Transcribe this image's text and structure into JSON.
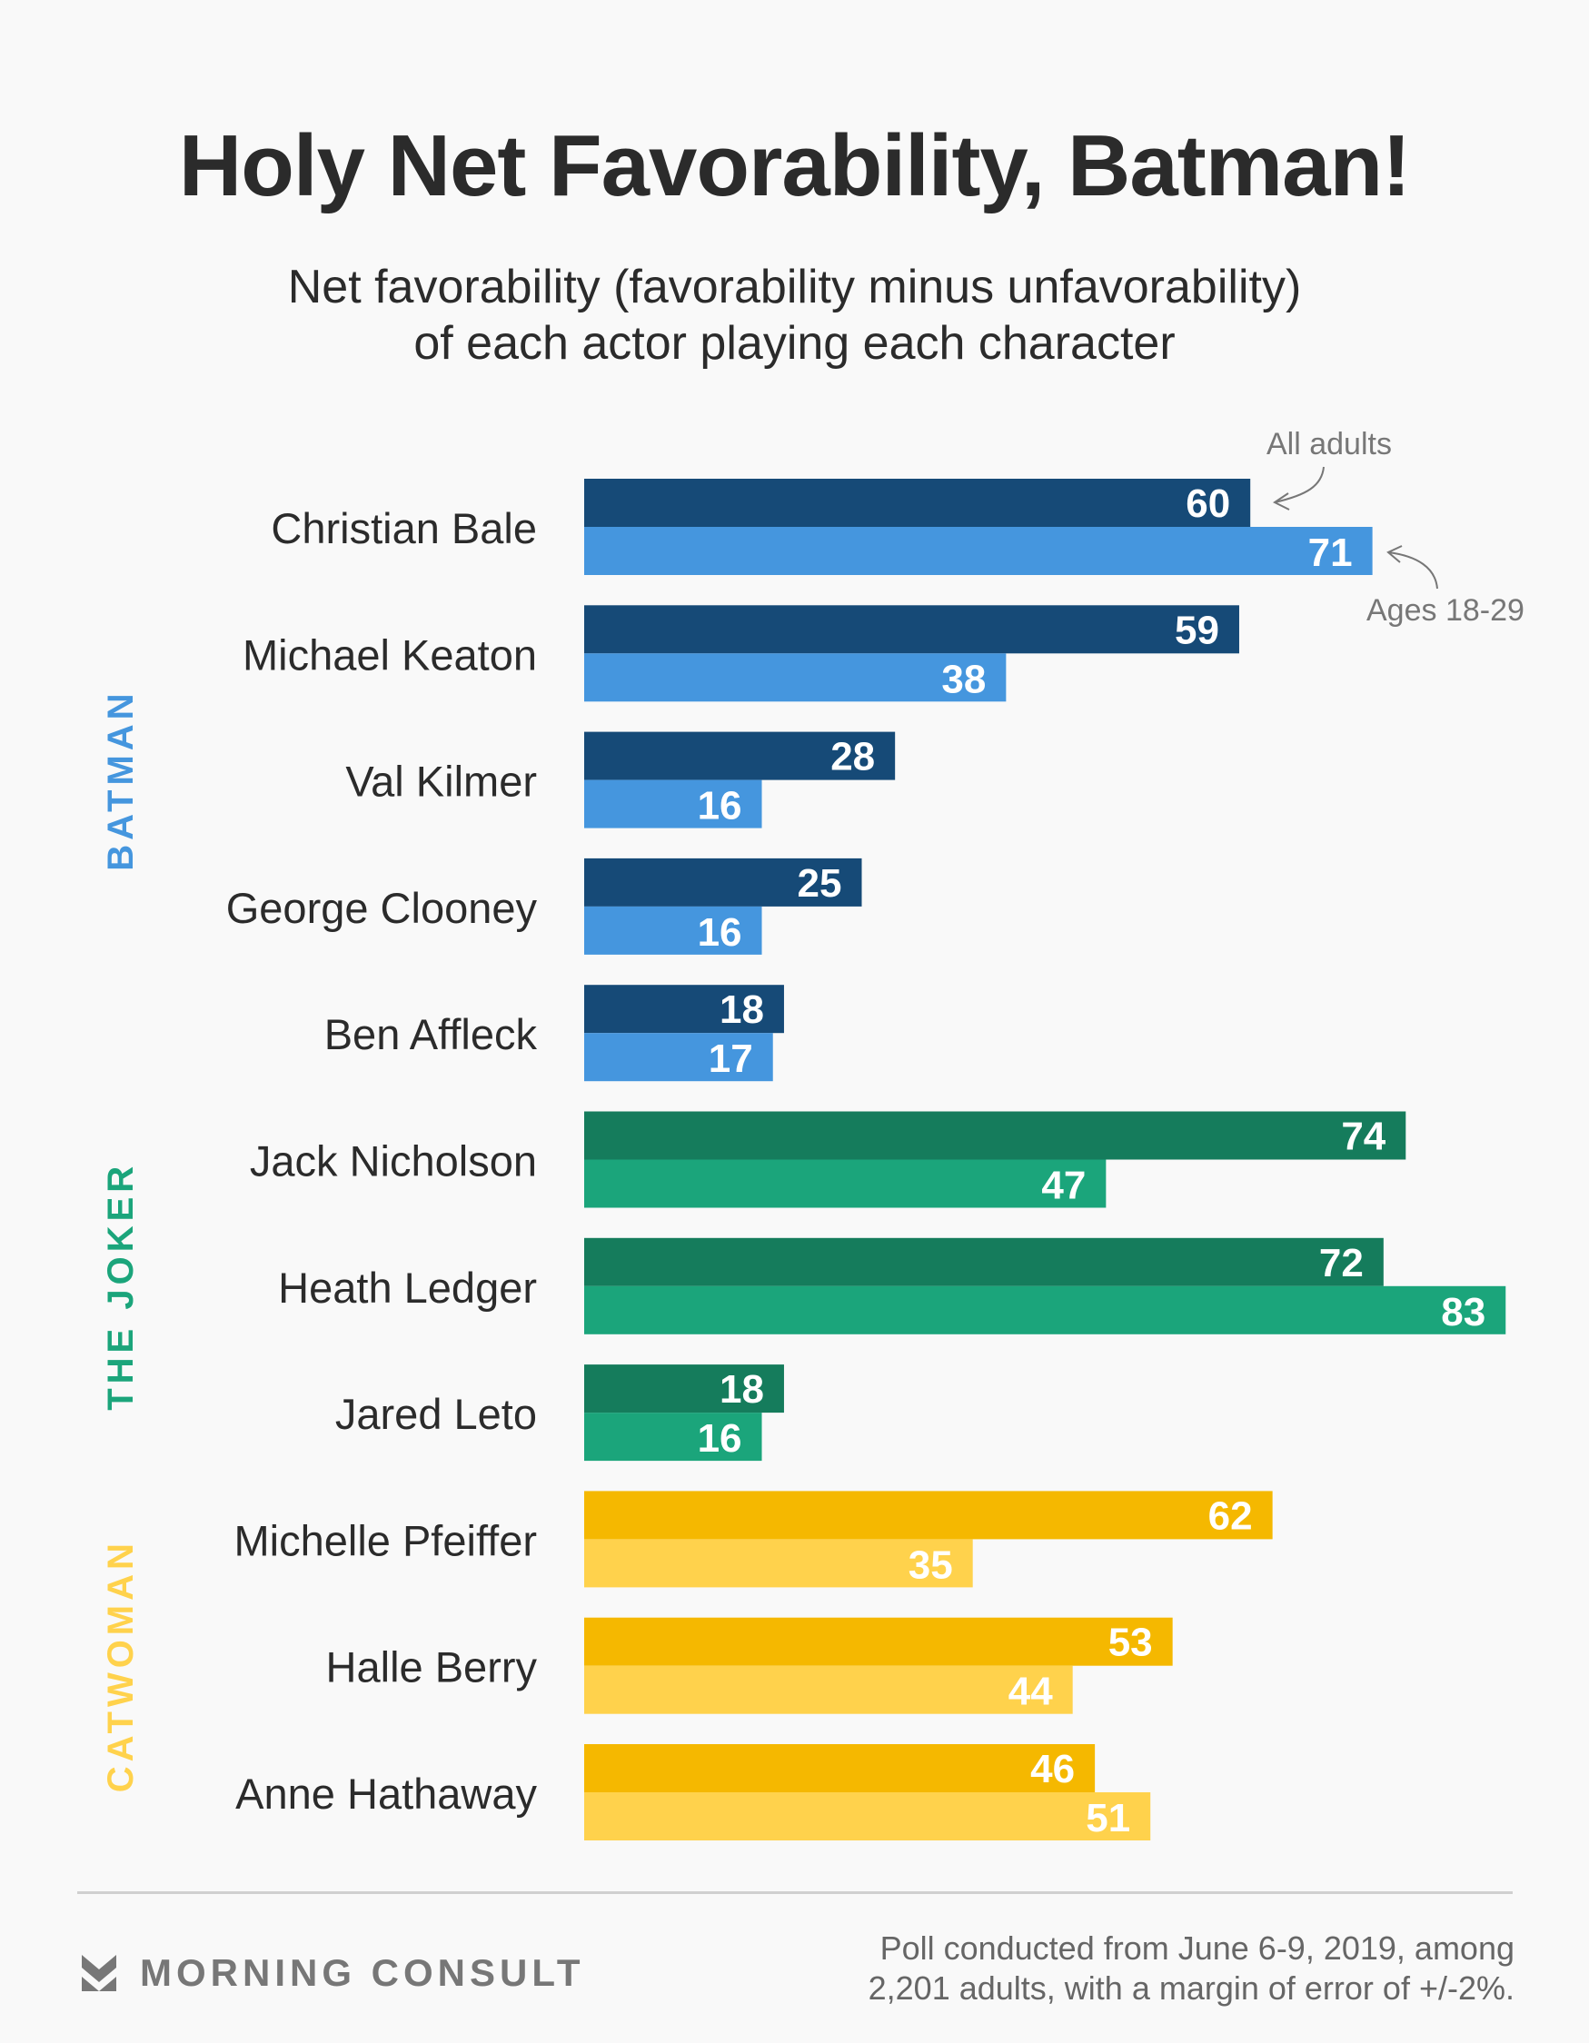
{
  "title": "Holy Net Favorability, Batman!",
  "subtitle": [
    "Net favorability (favorability minus unfavorability)",
    "of each actor playing each character"
  ],
  "annotations": {
    "all_adults": "All adults",
    "ages": "Ages 18-29"
  },
  "footer": {
    "brand": "MORNING CONSULT",
    "note": [
      "Poll conducted from June 6-9, 2019, among",
      "2,201 adults, with a margin of error of +/-2%."
    ]
  },
  "colors": {
    "Batman": {
      "adults": "#164a77",
      "young": "#4596de"
    },
    "The Joker": {
      "adults": "#157c5c",
      "young": "#1ba57b"
    },
    "Catwoman": {
      "adults": "#f5b800",
      "young": "#ffd24c"
    },
    "label_text": "#2b2b2b",
    "annotation": "#777777"
  },
  "chart_data": {
    "type": "bar",
    "orientation": "horizontal",
    "title": "Holy Net Favorability, Batman!",
    "subtitle": "Net favorability (favorability minus unfavorability) of each actor playing each character",
    "xlabel": "",
    "ylabel": "",
    "xlim": [
      0,
      85
    ],
    "grid": false,
    "legend": "inline annotations on first group (top-right)",
    "groups": [
      {
        "name": "BATMAN",
        "character": "Batman",
        "actors": [
          "Christian Bale",
          "Michael Keaton",
          "Val Kilmer",
          "George Clooney",
          "Ben Affleck"
        ]
      },
      {
        "name": "THE JOKER",
        "character": "The Joker",
        "actors": [
          "Jack Nicholson",
          "Heath Ledger",
          "Jared Leto"
        ]
      },
      {
        "name": "CATWOMAN",
        "character": "Catwoman",
        "actors": [
          "Michelle Pfeiffer",
          "Halle Berry",
          "Anne Hathaway"
        ]
      }
    ],
    "categories": [
      "Christian Bale",
      "Michael Keaton",
      "Val Kilmer",
      "George Clooney",
      "Ben Affleck",
      "Jack Nicholson",
      "Heath Ledger",
      "Jared Leto",
      "Michelle Pfeiffer",
      "Halle Berry",
      "Anne Hathaway"
    ],
    "series": [
      {
        "name": "All adults",
        "values": [
          60,
          59,
          28,
          25,
          18,
          74,
          72,
          18,
          62,
          53,
          46
        ]
      },
      {
        "name": "Ages 18-29",
        "values": [
          71,
          38,
          16,
          16,
          17,
          47,
          83,
          16,
          35,
          44,
          51
        ]
      }
    ]
  }
}
